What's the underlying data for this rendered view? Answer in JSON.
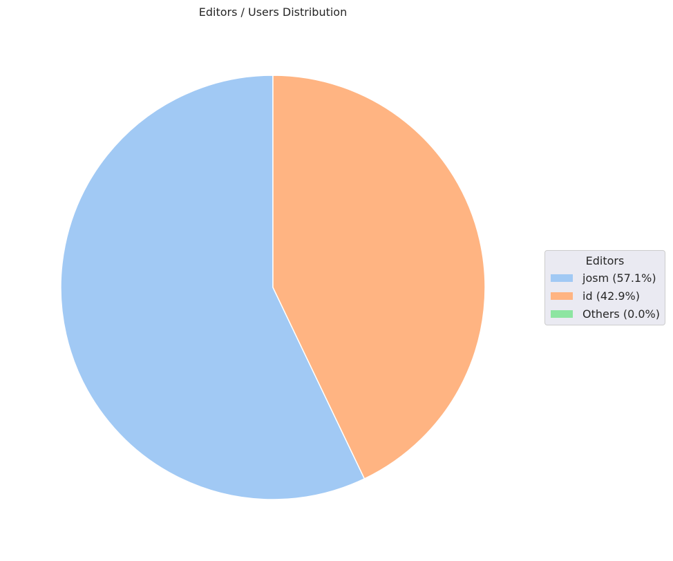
{
  "chart_data": {
    "type": "pie",
    "title": "Editors / Users Distribution",
    "slices": [
      {
        "label": "josm",
        "value": 57.1,
        "color": "#a1c9f4"
      },
      {
        "label": "id",
        "value": 42.9,
        "color": "#ffb482"
      },
      {
        "label": "Others",
        "value": 0.0,
        "color": "#8de5a1"
      }
    ],
    "start_angle": "top (12 o'clock)",
    "direction": "counterclockwise",
    "slice_edge_color": "#ffffff",
    "legend": {
      "title": "Editors",
      "placement": "center-right",
      "entries": [
        {
          "label": "josm (57.1%)",
          "color": "#a1c9f4"
        },
        {
          "label": "id (42.9%)",
          "color": "#ffb482"
        },
        {
          "label": "Others (0.0%)",
          "color": "#8de5a1"
        }
      ]
    }
  }
}
